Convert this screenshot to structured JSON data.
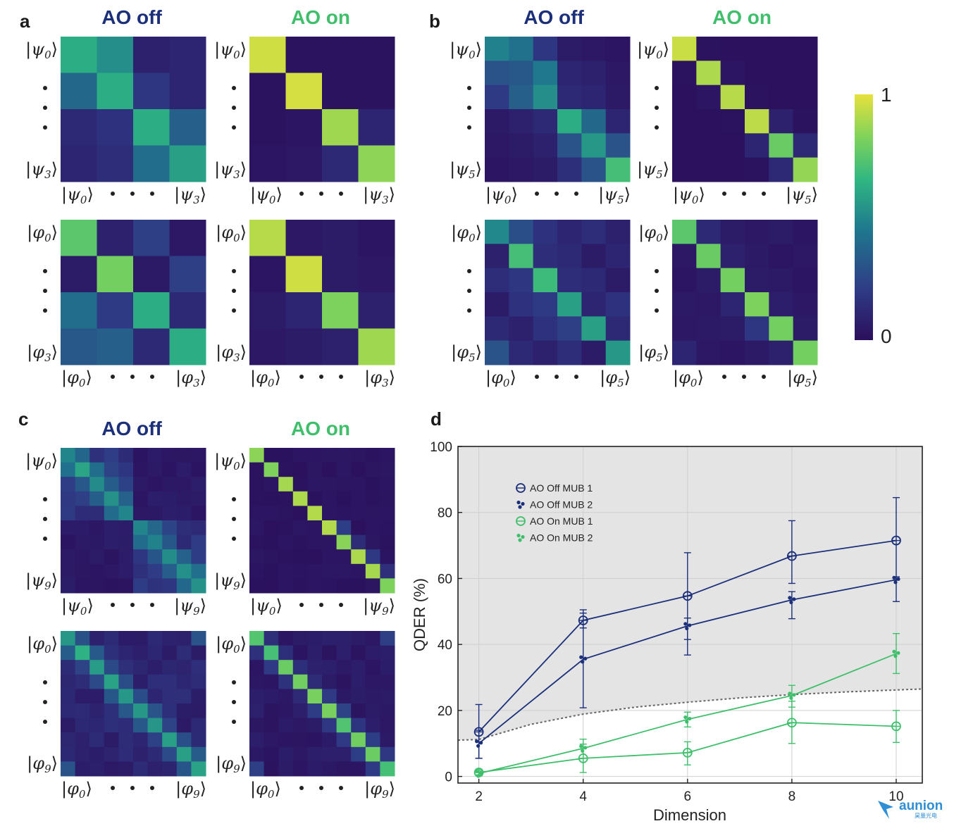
{
  "panels": {
    "a": {
      "label": "a",
      "dim": 4,
      "headers": {
        "off": "AO off",
        "on": "AO on"
      },
      "rows": [
        {
          "basis": "ψ",
          "first": "0",
          "last": "3",
          "off": [
            [
              0.62,
              0.52,
              0.08,
              0.1
            ],
            [
              0.38,
              0.62,
              0.18,
              0.1
            ],
            [
              0.12,
              0.16,
              0.62,
              0.35
            ],
            [
              0.1,
              0.14,
              0.4,
              0.58
            ]
          ],
          "on": [
            [
              0.96,
              0.02,
              0.02,
              0.02
            ],
            [
              0.02,
              0.97,
              0.02,
              0.02
            ],
            [
              0.02,
              0.03,
              0.88,
              0.1
            ],
            [
              0.03,
              0.04,
              0.12,
              0.85
            ]
          ]
        },
        {
          "basis": "φ",
          "first": "0",
          "last": "3",
          "off": [
            [
              0.75,
              0.08,
              0.22,
              0.04
            ],
            [
              0.06,
              0.8,
              0.05,
              0.22
            ],
            [
              0.4,
              0.2,
              0.62,
              0.12
            ],
            [
              0.32,
              0.35,
              0.12,
              0.62
            ]
          ],
          "on": [
            [
              0.92,
              0.04,
              0.06,
              0.03
            ],
            [
              0.03,
              0.96,
              0.06,
              0.04
            ],
            [
              0.06,
              0.1,
              0.82,
              0.08
            ],
            [
              0.04,
              0.06,
              0.08,
              0.88
            ]
          ]
        }
      ]
    },
    "b": {
      "label": "b",
      "dim": 6,
      "headers": {
        "off": "AO off",
        "on": "AO on"
      },
      "rows": [
        {
          "basis": "ψ",
          "first": "0",
          "last": "5",
          "off": [
            [
              0.48,
              0.42,
              0.18,
              0.06,
              0.04,
              0.03
            ],
            [
              0.3,
              0.32,
              0.45,
              0.1,
              0.08,
              0.04
            ],
            [
              0.2,
              0.35,
              0.52,
              0.12,
              0.1,
              0.05
            ],
            [
              0.05,
              0.08,
              0.12,
              0.62,
              0.38,
              0.1
            ],
            [
              0.04,
              0.06,
              0.08,
              0.3,
              0.55,
              0.3
            ],
            [
              0.03,
              0.04,
              0.06,
              0.15,
              0.3,
              0.7
            ]
          ],
          "on": [
            [
              0.95,
              0.02,
              0.01,
              0.01,
              0.01,
              0.01
            ],
            [
              0.02,
              0.9,
              0.03,
              0.01,
              0.01,
              0.01
            ],
            [
              0.01,
              0.03,
              0.92,
              0.02,
              0.01,
              0.01
            ],
            [
              0.01,
              0.01,
              0.02,
              0.93,
              0.08,
              0.02
            ],
            [
              0.01,
              0.01,
              0.01,
              0.1,
              0.78,
              0.12
            ],
            [
              0.01,
              0.01,
              0.01,
              0.02,
              0.12,
              0.86
            ]
          ]
        },
        {
          "basis": "φ",
          "first": "0",
          "last": "5",
          "off": [
            [
              0.5,
              0.28,
              0.16,
              0.1,
              0.14,
              0.08
            ],
            [
              0.08,
              0.7,
              0.14,
              0.12,
              0.06,
              0.1
            ],
            [
              0.14,
              0.18,
              0.68,
              0.14,
              0.12,
              0.06
            ],
            [
              0.06,
              0.16,
              0.2,
              0.58,
              0.1,
              0.16
            ],
            [
              0.12,
              0.08,
              0.16,
              0.22,
              0.58,
              0.12
            ],
            [
              0.3,
              0.12,
              0.08,
              0.14,
              0.06,
              0.55
            ]
          ],
          "on": [
            [
              0.75,
              0.12,
              0.06,
              0.04,
              0.06,
              0.03
            ],
            [
              0.04,
              0.78,
              0.08,
              0.05,
              0.03,
              0.04
            ],
            [
              0.03,
              0.06,
              0.8,
              0.06,
              0.05,
              0.03
            ],
            [
              0.05,
              0.04,
              0.1,
              0.82,
              0.07,
              0.04
            ],
            [
              0.04,
              0.05,
              0.06,
              0.18,
              0.8,
              0.06
            ],
            [
              0.1,
              0.04,
              0.03,
              0.05,
              0.08,
              0.8
            ]
          ]
        }
      ]
    },
    "c": {
      "label": "c",
      "dim": 10,
      "headers": {
        "off": "AO off",
        "on": "AO on"
      },
      "rows": [
        {
          "basis": "ψ",
          "first": "0",
          "last": "9",
          "pattern": "off_psi",
          "on_pattern": "on_psi"
        },
        {
          "basis": "φ",
          "first": "0",
          "last": "9",
          "pattern": "off_phi",
          "on_pattern": "on_phi"
        }
      ]
    }
  },
  "colorbar": {
    "max_label": "1",
    "min_label": "0",
    "colors": [
      "#2b0f5c",
      "#2f3a85",
      "#1f788e",
      "#2fb682",
      "#7cd25c",
      "#e7e13c"
    ]
  },
  "headers_colors": {
    "off": "#1b2f7a",
    "on": "#3fbf6b"
  },
  "chart_data": {
    "label": "d",
    "type": "line",
    "xlabel": "Dimension",
    "ylabel": "QDER (%)",
    "xlim": [
      1.6,
      10.5
    ],
    "ylim": [
      -2,
      100
    ],
    "xticks": [
      2,
      4,
      6,
      8,
      10
    ],
    "yticks": [
      0,
      20,
      40,
      60,
      80,
      100
    ],
    "grid": true,
    "legend_position": "top-left",
    "threshold_curve": {
      "x": [
        1.6,
        2,
        3,
        4,
        5,
        6,
        7,
        8,
        9,
        10,
        10.5
      ],
      "y": [
        11,
        11.2,
        15.8,
        18.9,
        21,
        22.5,
        23.8,
        24.8,
        25.6,
        26.2,
        26.5
      ]
    },
    "series": [
      {
        "name": "AO Off MUB 1",
        "marker": "circle",
        "color": "#1b2f7a",
        "x": [
          2,
          4,
          6,
          8,
          10
        ],
        "y": [
          13.5,
          47.3,
          54.7,
          66.8,
          71.5
        ],
        "err": [
          [
            5.5,
            21.8
          ],
          [
            45,
            49.5
          ],
          [
            41.5,
            67.8
          ],
          [
            58.5,
            77.5
          ],
          [
            59.5,
            84.5
          ]
        ]
      },
      {
        "name": "AO Off MUB 2",
        "marker": "cross",
        "color": "#1b2f7a",
        "x": [
          2,
          4,
          6,
          8,
          10
        ],
        "y": [
          10,
          35.5,
          45.6,
          53.5,
          59.6
        ],
        "err": [
          [
            5.5,
            14
          ],
          [
            20.8,
            50.5
          ],
          [
            36.8,
            48
          ],
          [
            47.8,
            56
          ],
          [
            53,
            60.5
          ]
        ]
      },
      {
        "name": "AO On MUB 1",
        "marker": "circle",
        "color": "#3fbf6b",
        "x": [
          2,
          4,
          6,
          8,
          10
        ],
        "y": [
          1.2,
          5.5,
          7.2,
          16.3,
          15.2
        ],
        "err": [
          [
            0.5,
            2.2
          ],
          [
            1.2,
            9.8
          ],
          [
            3.5,
            10.5
          ],
          [
            10,
            22.8
          ],
          [
            10.3,
            20
          ]
        ]
      },
      {
        "name": "AO On MUB 2",
        "marker": "cross",
        "color": "#3fbf6b",
        "x": [
          2,
          4,
          6,
          8,
          10
        ],
        "y": [
          0.9,
          8.5,
          17.3,
          24.5,
          37.2
        ],
        "err": [
          [
            0.2,
            1.8
          ],
          [
            5.5,
            11.3
          ],
          [
            15,
            19.5
          ],
          [
            21,
            27.6
          ],
          [
            31.2,
            43.3
          ]
        ]
      }
    ]
  },
  "watermark": {
    "brand": "aunion",
    "sub": "昊量光电"
  }
}
